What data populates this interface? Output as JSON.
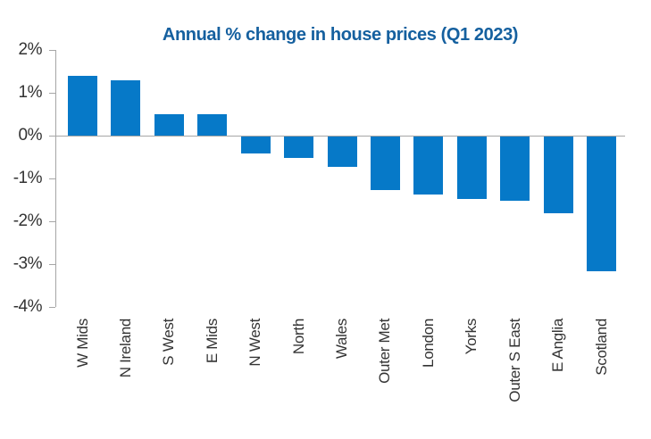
{
  "chart_data": {
    "type": "bar",
    "title": "Annual % change in house prices (Q1 2023)",
    "categories": [
      "W Mids",
      "N Ireland",
      "S West",
      "E Mids",
      "N West",
      "North",
      "Wales",
      "Outer Met",
      "London",
      "Yorks",
      "Outer S East",
      "E Anglia",
      "Scotland"
    ],
    "values": [
      1.4,
      1.3,
      0.5,
      0.5,
      -0.4,
      -0.5,
      -0.7,
      -1.25,
      -1.35,
      -1.45,
      -1.5,
      -1.8,
      -3.15
    ],
    "xlabel": "",
    "ylabel": "",
    "ylim": [
      -4,
      2
    ],
    "ytick_step": 1,
    "ytick_labels": [
      "2%",
      "1%",
      "0%",
      "-1%",
      "-2%",
      "-3%",
      "-4%"
    ],
    "grid": false,
    "legend": false,
    "colors": {
      "bar": "#0679c8",
      "title": "#15609f",
      "axis_text": "#333333",
      "axis_line": "#a6a6a6"
    }
  }
}
